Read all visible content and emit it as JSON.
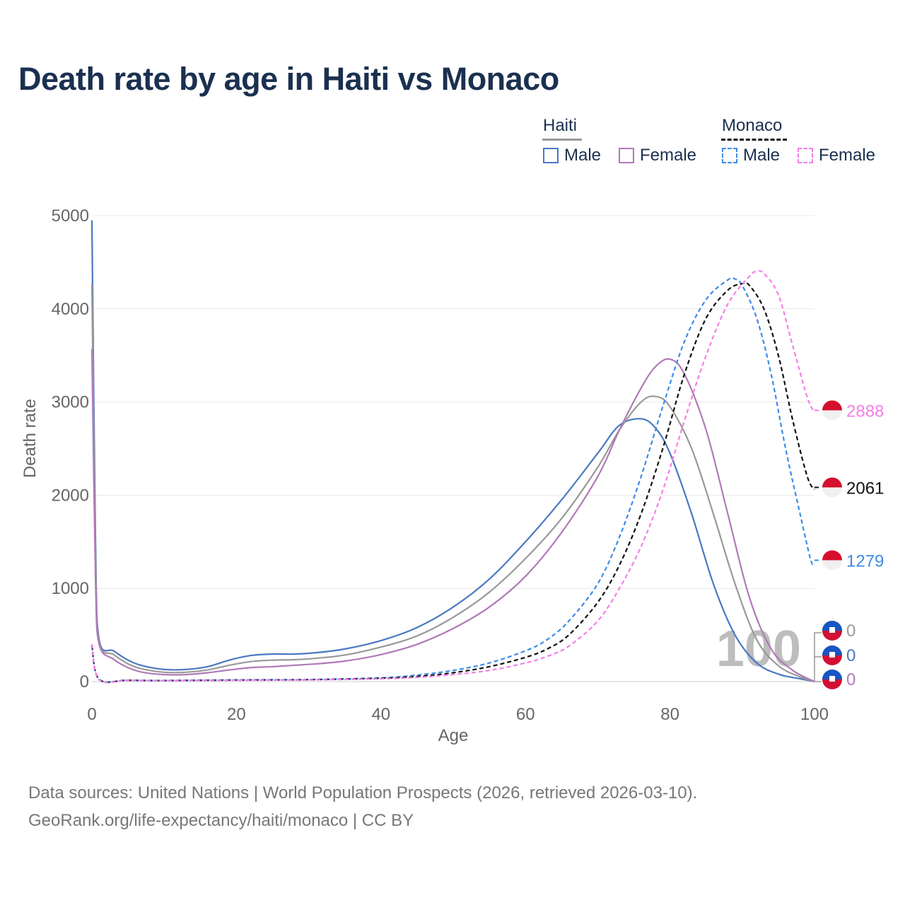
{
  "title": "Death rate by age in Haiti vs Monaco",
  "legend": {
    "groups": [
      {
        "name": "Haiti",
        "line_color": "#999999",
        "line_style": "solid",
        "items": [
          {
            "label": "Male",
            "color": "#4a78c2",
            "style": "solid"
          },
          {
            "label": "Female",
            "color": "#b07ab8",
            "style": "solid"
          }
        ]
      },
      {
        "name": "Monaco",
        "line_color": "#111111",
        "line_style": "dashed",
        "items": [
          {
            "label": "Male",
            "color": "#3d8be8",
            "style": "dashed"
          },
          {
            "label": "Female",
            "color": "#f47fe8",
            "style": "dashed"
          }
        ]
      }
    ]
  },
  "chart_data": {
    "type": "line",
    "title": "Death rate by age in Haiti vs Monaco",
    "xlabel": "Age",
    "ylabel": "Death rate",
    "xlim": [
      0,
      100
    ],
    "ylim": [
      0,
      5000
    ],
    "xticks": [
      "0",
      "20",
      "40",
      "60",
      "80",
      "100"
    ],
    "yticks": [
      "0",
      "1000",
      "2000",
      "3000",
      "4000",
      "5000"
    ],
    "grid": true,
    "age_watermark": "100",
    "series": [
      {
        "name": "Haiti Male",
        "country": "Haiti",
        "sex": "Male",
        "color": "#4a78c2",
        "dash": false,
        "end_label": "0",
        "points": [
          [
            0,
            4950
          ],
          [
            0.5,
            1500
          ],
          [
            1,
            450
          ],
          [
            3,
            330
          ],
          [
            5,
            230
          ],
          [
            7,
            170
          ],
          [
            10,
            130
          ],
          [
            13,
            130
          ],
          [
            16,
            160
          ],
          [
            19,
            230
          ],
          [
            22,
            280
          ],
          [
            25,
            295
          ],
          [
            28,
            295
          ],
          [
            31,
            310
          ],
          [
            35,
            350
          ],
          [
            40,
            440
          ],
          [
            45,
            580
          ],
          [
            50,
            800
          ],
          [
            55,
            1100
          ],
          [
            60,
            1500
          ],
          [
            65,
            1950
          ],
          [
            70,
            2450
          ],
          [
            73,
            2750
          ],
          [
            76,
            2820
          ],
          [
            78,
            2720
          ],
          [
            80,
            2450
          ],
          [
            83,
            1800
          ],
          [
            86,
            1050
          ],
          [
            89,
            500
          ],
          [
            92,
            200
          ],
          [
            95,
            80
          ],
          [
            98,
            30
          ],
          [
            100,
            0
          ]
        ]
      },
      {
        "name": "Haiti Total",
        "country": "Haiti",
        "sex": "Total",
        "color": "#999999",
        "dash": false,
        "end_label": "0",
        "points": [
          [
            0,
            4270
          ],
          [
            0.5,
            1300
          ],
          [
            1,
            420
          ],
          [
            3,
            290
          ],
          [
            5,
            190
          ],
          [
            7,
            135
          ],
          [
            10,
            100
          ],
          [
            13,
            100
          ],
          [
            16,
            125
          ],
          [
            19,
            175
          ],
          [
            22,
            215
          ],
          [
            25,
            230
          ],
          [
            28,
            235
          ],
          [
            31,
            250
          ],
          [
            35,
            285
          ],
          [
            40,
            370
          ],
          [
            45,
            490
          ],
          [
            50,
            690
          ],
          [
            55,
            960
          ],
          [
            60,
            1320
          ],
          [
            65,
            1750
          ],
          [
            70,
            2300
          ],
          [
            73,
            2700
          ],
          [
            76,
            3000
          ],
          [
            78,
            3060
          ],
          [
            80,
            2950
          ],
          [
            83,
            2500
          ],
          [
            86,
            1800
          ],
          [
            89,
            1050
          ],
          [
            92,
            450
          ],
          [
            95,
            170
          ],
          [
            98,
            50
          ],
          [
            100,
            0
          ]
        ]
      },
      {
        "name": "Haiti Female",
        "country": "Haiti",
        "sex": "Female",
        "color": "#b07ab8",
        "dash": false,
        "end_label": "0",
        "points": [
          [
            0,
            3570
          ],
          [
            0.5,
            1100
          ],
          [
            1,
            400
          ],
          [
            3,
            240
          ],
          [
            5,
            150
          ],
          [
            7,
            100
          ],
          [
            10,
            75
          ],
          [
            13,
            75
          ],
          [
            16,
            95
          ],
          [
            19,
            125
          ],
          [
            22,
            150
          ],
          [
            25,
            160
          ],
          [
            28,
            175
          ],
          [
            31,
            190
          ],
          [
            35,
            220
          ],
          [
            40,
            290
          ],
          [
            45,
            400
          ],
          [
            50,
            570
          ],
          [
            55,
            800
          ],
          [
            60,
            1130
          ],
          [
            65,
            1600
          ],
          [
            70,
            2200
          ],
          [
            73,
            2700
          ],
          [
            76,
            3150
          ],
          [
            78,
            3380
          ],
          [
            80,
            3460
          ],
          [
            82,
            3300
          ],
          [
            85,
            2700
          ],
          [
            88,
            1800
          ],
          [
            91,
            900
          ],
          [
            94,
            350
          ],
          [
            97,
            120
          ],
          [
            100,
            0
          ]
        ]
      },
      {
        "name": "Monaco Male",
        "country": "Monaco",
        "sex": "Male",
        "color": "#3d8be8",
        "dash": true,
        "end_label": "1279",
        "points": [
          [
            0,
            380
          ],
          [
            1,
            25
          ],
          [
            5,
            15
          ],
          [
            10,
            12
          ],
          [
            20,
            18
          ],
          [
            30,
            22
          ],
          [
            40,
            40
          ],
          [
            45,
            70
          ],
          [
            50,
            120
          ],
          [
            55,
            200
          ],
          [
            60,
            330
          ],
          [
            63,
            450
          ],
          [
            66,
            650
          ],
          [
            70,
            1050
          ],
          [
            73,
            1550
          ],
          [
            76,
            2200
          ],
          [
            79,
            2950
          ],
          [
            82,
            3650
          ],
          [
            85,
            4100
          ],
          [
            88,
            4310
          ],
          [
            89,
            4320
          ],
          [
            90,
            4250
          ],
          [
            92,
            3900
          ],
          [
            94,
            3300
          ],
          [
            96,
            2500
          ],
          [
            98,
            1800
          ],
          [
            99.5,
            1300
          ],
          [
            100,
            1279
          ]
        ]
      },
      {
        "name": "Monaco Total",
        "country": "Monaco",
        "sex": "Total",
        "color": "#111111",
        "dash": true,
        "end_label": "2061",
        "points": [
          [
            0,
            390
          ],
          [
            1,
            22
          ],
          [
            5,
            14
          ],
          [
            10,
            11
          ],
          [
            20,
            16
          ],
          [
            30,
            20
          ],
          [
            40,
            35
          ],
          [
            45,
            55
          ],
          [
            50,
            95
          ],
          [
            55,
            160
          ],
          [
            60,
            260
          ],
          [
            63,
            350
          ],
          [
            66,
            500
          ],
          [
            70,
            850
          ],
          [
            73,
            1250
          ],
          [
            76,
            1800
          ],
          [
            79,
            2500
          ],
          [
            82,
            3300
          ],
          [
            85,
            3900
          ],
          [
            88,
            4200
          ],
          [
            90,
            4270
          ],
          [
            91,
            4250
          ],
          [
            93,
            4000
          ],
          [
            95,
            3500
          ],
          [
            97,
            2800
          ],
          [
            99,
            2200
          ],
          [
            100,
            2061
          ]
        ]
      },
      {
        "name": "Monaco Female",
        "country": "Monaco",
        "sex": "Female",
        "color": "#f47fe8",
        "dash": true,
        "end_label": "2888",
        "points": [
          [
            0,
            400
          ],
          [
            1,
            20
          ],
          [
            5,
            13
          ],
          [
            10,
            10
          ],
          [
            20,
            14
          ],
          [
            30,
            18
          ],
          [
            40,
            30
          ],
          [
            45,
            45
          ],
          [
            50,
            75
          ],
          [
            55,
            120
          ],
          [
            60,
            200
          ],
          [
            63,
            270
          ],
          [
            66,
            380
          ],
          [
            70,
            650
          ],
          [
            73,
            1000
          ],
          [
            76,
            1450
          ],
          [
            79,
            2050
          ],
          [
            82,
            2800
          ],
          [
            85,
            3500
          ],
          [
            88,
            4050
          ],
          [
            91,
            4350
          ],
          [
            92,
            4400
          ],
          [
            93,
            4380
          ],
          [
            95,
            4150
          ],
          [
            97,
            3600
          ],
          [
            99,
            3050
          ],
          [
            100,
            2888
          ]
        ]
      }
    ]
  },
  "sources": {
    "line1": "Data sources: United Nations | World Population Prospects (2026, retrieved 2026-03-10).",
    "line2": "GeoRank.org/life-expectancy/haiti/monaco | CC BY"
  }
}
